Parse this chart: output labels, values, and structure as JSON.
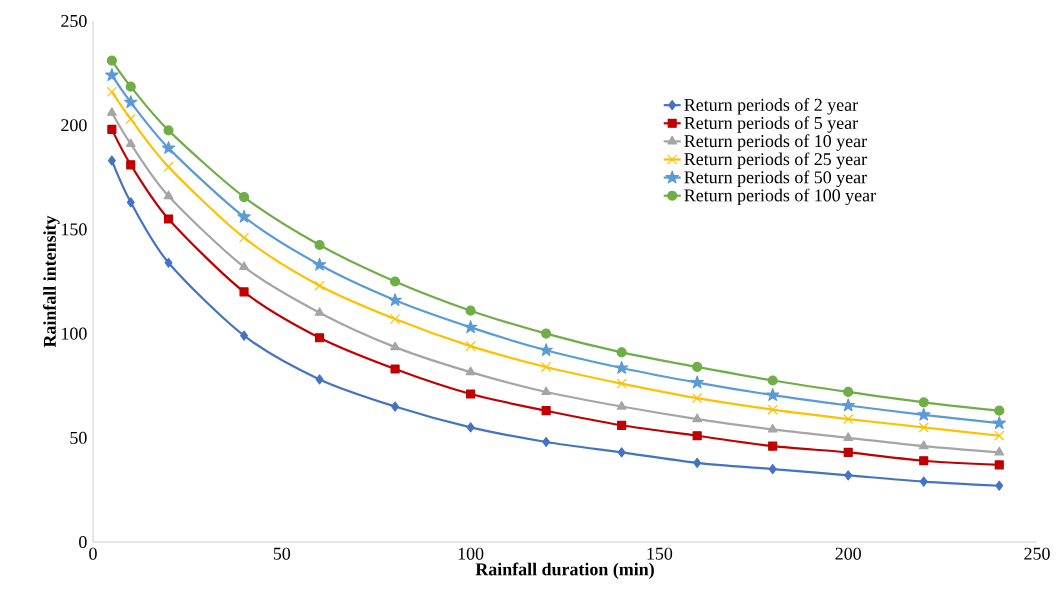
{
  "chart_data": {
    "type": "line",
    "xlabel": "Rainfall duration (min)",
    "ylabel": "Rainfall intensity",
    "x": [
      5,
      10,
      20,
      40,
      60,
      80,
      100,
      120,
      140,
      160,
      180,
      200,
      220,
      240
    ],
    "xlim": [
      0,
      250
    ],
    "xticks": [
      0,
      50,
      100,
      150,
      200,
      250
    ],
    "ylim": [
      0,
      250
    ],
    "yticks": [
      0,
      50,
      100,
      150,
      200,
      250
    ],
    "legend": "top right",
    "line_style": "solid",
    "series": [
      {
        "name": "Return periods of 2 year",
        "color": "#4472c4",
        "marker": "diamond",
        "values": [
          183,
          163,
          134,
          99,
          78,
          65,
          55,
          48,
          43,
          38,
          35,
          32,
          29,
          27
        ]
      },
      {
        "name": "Return periods of 5 year",
        "color": "#c00000",
        "marker": "square",
        "values": [
          198,
          181,
          155,
          120,
          98,
          83,
          71,
          63,
          56,
          51,
          46,
          43,
          39,
          37
        ]
      },
      {
        "name": "Return periods of 10 year",
        "color": "#a5a5a5",
        "marker": "triangle",
        "values": [
          206,
          191,
          166,
          132,
          110,
          93.5,
          81.5,
          72,
          65,
          59,
          54,
          50,
          46,
          43
        ]
      },
      {
        "name": "Return periods of 25 year",
        "color": "#ffc000",
        "marker": "cross",
        "values": [
          216,
          203,
          180,
          146,
          123,
          107,
          94,
          84,
          76,
          69,
          63.5,
          59,
          55,
          51
        ]
      },
      {
        "name": "Return periods of 50 year",
        "color": "#5b9bd5",
        "marker": "star",
        "values": [
          224,
          211,
          189,
          156,
          133,
          116,
          103,
          92,
          83.5,
          76.5,
          70.5,
          65.5,
          61,
          57
        ]
      },
      {
        "name": "Return periods of 100 year",
        "color": "#70ad47",
        "marker": "circle",
        "values": [
          231,
          218.5,
          197.5,
          165.5,
          142.5,
          125,
          111,
          100,
          91,
          84,
          77.5,
          72,
          67,
          63
        ]
      }
    ]
  }
}
